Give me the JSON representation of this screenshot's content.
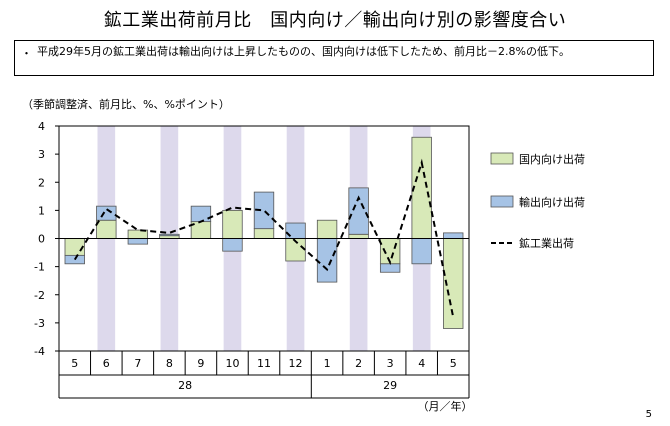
{
  "header": {
    "title": "鉱工業出荷前月比　国内向け／輸出向け別の影響度合い"
  },
  "summary": {
    "bullet": "・",
    "text": "平成29年5月の鉱工業出荷は輸出向けは上昇したものの、国内向けは低下したため、前月比－2.8%の低下。"
  },
  "unit_note": "（季節調整済、前月比、%、%ポイント）",
  "page_number": "5",
  "colors": {
    "domestic": "#d8e9b8",
    "export": "#a6c3e5",
    "shade": "#ddd9ec",
    "line": "#000000"
  },
  "chart_data": {
    "type": "bar",
    "stacked": true,
    "categories": [
      "5",
      "6",
      "7",
      "8",
      "9",
      "10",
      "11",
      "12",
      "1",
      "2",
      "3",
      "4",
      "5"
    ],
    "year_labels": [
      {
        "label": "28",
        "from": 0,
        "to": 7
      },
      {
        "label": "29",
        "from": 8,
        "to": 12
      }
    ],
    "shaded_categories": [
      1,
      3,
      5,
      7,
      9,
      11
    ],
    "x_unit_label": "（月／年）",
    "ylim": [
      -4,
      4
    ],
    "yticks": [
      4,
      3,
      2,
      1,
      0,
      -1,
      -2,
      -3,
      -4
    ],
    "series": [
      {
        "name": "国内向け出荷",
        "kind": "bar",
        "values": [
          -0.6,
          0.65,
          0.3,
          0.1,
          0.6,
          1.0,
          0.35,
          -0.8,
          0.65,
          0.15,
          -0.9,
          3.6,
          -3.2
        ]
      },
      {
        "name": "輸出向け出荷",
        "kind": "bar",
        "values": [
          -0.3,
          0.5,
          -0.2,
          0.05,
          0.55,
          -0.45,
          1.3,
          0.55,
          -1.55,
          1.65,
          -0.3,
          -0.9,
          0.2
        ]
      },
      {
        "name": "鉱工業出荷",
        "kind": "line",
        "values": [
          -0.75,
          1.05,
          0.3,
          0.2,
          0.6,
          1.1,
          1.0,
          -0.1,
          -1.1,
          1.45,
          -0.85,
          2.7,
          -2.8
        ]
      }
    ]
  }
}
